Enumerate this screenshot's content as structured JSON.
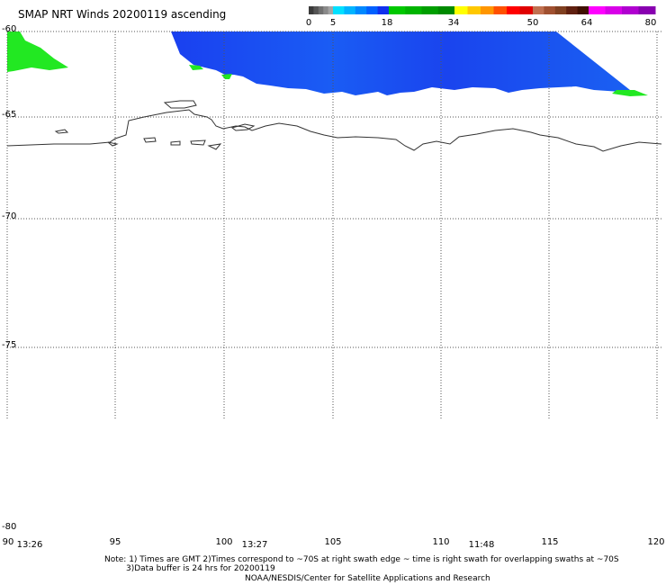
{
  "title": "SMAP NRT Winds 20200119 ascending",
  "colorbar": {
    "segments": [
      {
        "from": 0,
        "to": 5,
        "colors": [
          "#3a3a3a",
          "#555555",
          "#707070",
          "#8a8a8a",
          "#a5a5a5"
        ]
      },
      {
        "from": 5,
        "to": 18,
        "colors": [
          "#00e0ff",
          "#00b4ff",
          "#0088ff",
          "#0060ff",
          "#1030ee"
        ]
      },
      {
        "from": 18,
        "to": 34,
        "colors": [
          "#00c800",
          "#00b400",
          "#009e00",
          "#008a00"
        ]
      },
      {
        "from": 34,
        "to": 50,
        "colors": [
          "#ffff00",
          "#ffc800",
          "#ff9600",
          "#ff5000",
          "#ff0000",
          "#e00000"
        ]
      },
      {
        "from": 50,
        "to": 64,
        "colors": [
          "#c07050",
          "#a05030",
          "#804020",
          "#602010",
          "#401000"
        ]
      },
      {
        "from": 64,
        "to": 80,
        "colors": [
          "#ff00ff",
          "#d800e8",
          "#b000d0",
          "#8800b0"
        ]
      }
    ],
    "labels": [
      "0",
      "5",
      "18",
      "34",
      "50",
      "64",
      "80"
    ]
  },
  "map": {
    "lon_range": [
      90,
      120
    ],
    "lat_range": [
      -60,
      -80
    ],
    "lon_ticks": [
      "90",
      "95",
      "100",
      "105",
      "110",
      "115",
      "120"
    ],
    "lat_ticks": [
      "-60",
      "-65",
      "-70",
      "-75",
      "-80"
    ],
    "times": [
      "13:26",
      "13:27",
      "11:48"
    ],
    "wind_color": "#1a50f0",
    "high_wind_color": "#22e822"
  },
  "notes": {
    "line1": "Note: 1) Times are GMT 2)Times correspond to ~70S at right swath edge ~ time is right swath for overlapping swaths at ~70S",
    "line2": "3)Data buffer is 24 hrs for 20200119",
    "line3": "NOAA/NESDIS/Center for Satellite Applications and Research"
  }
}
